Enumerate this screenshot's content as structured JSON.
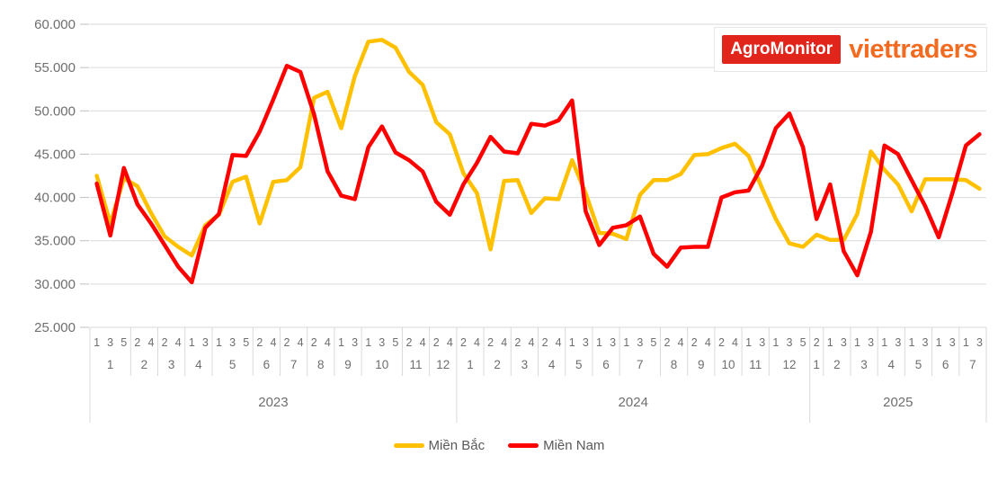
{
  "logo": {
    "agromonitor": "AgroMonitor",
    "viettraders": "viettraders"
  },
  "colors": {
    "agromonitor_bg": "#e1251b",
    "viettraders_text": "#f26b21",
    "grid": "#d9d9d9",
    "tick": "#bfbfbf",
    "axis_text": "#6e6e6e",
    "legend_text": "#595959",
    "mien_bac": "#ffc000",
    "mien_nam": "#ff0000"
  },
  "chart_data": {
    "type": "line",
    "title": "",
    "xlabel": "",
    "ylabel": "",
    "grid": "horizontal",
    "legend_position": "bottom-center",
    "ylim": [
      25000,
      60000
    ],
    "y_axis": {
      "max": 60000,
      "min": 25000,
      "tick_step": 5000,
      "ticks": [
        "60.000",
        "55.000",
        "50.000",
        "45.000",
        "40.000",
        "35.000",
        "30.000",
        "25.000"
      ]
    },
    "x_axis": {
      "years": [
        {
          "label": "2023",
          "months": [
            {
              "label": "1",
              "weeks": [
                "1",
                "3",
                "5"
              ]
            },
            {
              "label": "2",
              "weeks": [
                "2",
                "4"
              ]
            },
            {
              "label": "3",
              "weeks": [
                "2",
                "4"
              ]
            },
            {
              "label": "4",
              "weeks": [
                "1",
                "3"
              ]
            },
            {
              "label": "5",
              "weeks": [
                "1",
                "3",
                "5"
              ]
            },
            {
              "label": "6",
              "weeks": [
                "2",
                "4"
              ]
            },
            {
              "label": "7",
              "weeks": [
                "2",
                "4"
              ]
            },
            {
              "label": "8",
              "weeks": [
                "2",
                "4"
              ]
            },
            {
              "label": "9",
              "weeks": [
                "1",
                "3"
              ]
            },
            {
              "label": "10",
              "weeks": [
                "1",
                "3",
                "5"
              ]
            },
            {
              "label": "11",
              "weeks": [
                "2",
                "4"
              ]
            },
            {
              "label": "12",
              "weeks": [
                "2",
                "4"
              ]
            }
          ]
        },
        {
          "label": "2024",
          "months": [
            {
              "label": "1",
              "weeks": [
                "2",
                "4"
              ]
            },
            {
              "label": "2",
              "weeks": [
                "2",
                "4"
              ]
            },
            {
              "label": "3",
              "weeks": [
                "2",
                "4"
              ]
            },
            {
              "label": "4",
              "weeks": [
                "2",
                "4"
              ]
            },
            {
              "label": "5",
              "weeks": [
                "1",
                "3"
              ]
            },
            {
              "label": "6",
              "weeks": [
                "1",
                "3"
              ]
            },
            {
              "label": "7",
              "weeks": [
                "1",
                "3",
                "5"
              ]
            },
            {
              "label": "8",
              "weeks": [
                "2",
                "4"
              ]
            },
            {
              "label": "9",
              "weeks": [
                "2",
                "4"
              ]
            },
            {
              "label": "10",
              "weeks": [
                "2",
                "4"
              ]
            },
            {
              "label": "11",
              "weeks": [
                "1",
                "3"
              ]
            },
            {
              "label": "12",
              "weeks": [
                "1",
                "3",
                "5"
              ]
            }
          ]
        },
        {
          "label": "2025",
          "months": [
            {
              "label": "1",
              "weeks": [
                "2"
              ]
            },
            {
              "label": "2",
              "weeks": [
                "1",
                "3"
              ]
            },
            {
              "label": "3",
              "weeks": [
                "1",
                "3"
              ]
            },
            {
              "label": "4",
              "weeks": [
                "1",
                "3"
              ]
            },
            {
              "label": "5",
              "weeks": [
                "1",
                "3"
              ]
            },
            {
              "label": "6",
              "weeks": [
                "1",
                "3"
              ]
            },
            {
              "label": "7",
              "weeks": [
                "1",
                "3"
              ]
            }
          ]
        }
      ]
    },
    "series": [
      {
        "name": "Miền Bắc",
        "color": "#ffc000",
        "values": [
          42500,
          37000,
          42200,
          41300,
          38200,
          35500,
          34300,
          33300,
          36800,
          38000,
          41800,
          42400,
          37000,
          41800,
          42000,
          43500,
          51500,
          52200,
          48000,
          54000,
          58000,
          58200,
          57300,
          54500,
          53000,
          48700,
          47300,
          42800,
          40500,
          34000,
          41900,
          42000,
          38200,
          39900,
          39800,
          44300,
          40500,
          35900,
          35800,
          35200,
          40300,
          42000,
          42000,
          42700,
          44900,
          45000,
          45700,
          46200,
          44800,
          41000,
          37500,
          34700,
          34300,
          35700,
          35100,
          35100,
          38100,
          45300,
          43200,
          41500,
          38400,
          42100,
          42100,
          42100,
          42000,
          41000
        ]
      },
      {
        "name": "Miền Nam",
        "color": "#ff0000",
        "values": [
          41600,
          35600,
          43400,
          39200,
          37000,
          34500,
          32000,
          30200,
          36500,
          38100,
          44900,
          44800,
          47600,
          51300,
          55200,
          54500,
          49600,
          43000,
          40200,
          39800,
          45800,
          48200,
          45200,
          44300,
          43000,
          39500,
          38000,
          41500,
          44000,
          47000,
          45300,
          45100,
          48500,
          48300,
          48900,
          51200,
          38400,
          34500,
          36500,
          36800,
          37800,
          33500,
          32000,
          34200,
          34300,
          34300,
          40000,
          40600,
          40800,
          43700,
          48000,
          49700,
          45800,
          37500,
          41500,
          33800,
          31000,
          36000,
          46000,
          45000,
          42000,
          39000,
          35400,
          40500,
          46000,
          47300
        ]
      }
    ]
  }
}
